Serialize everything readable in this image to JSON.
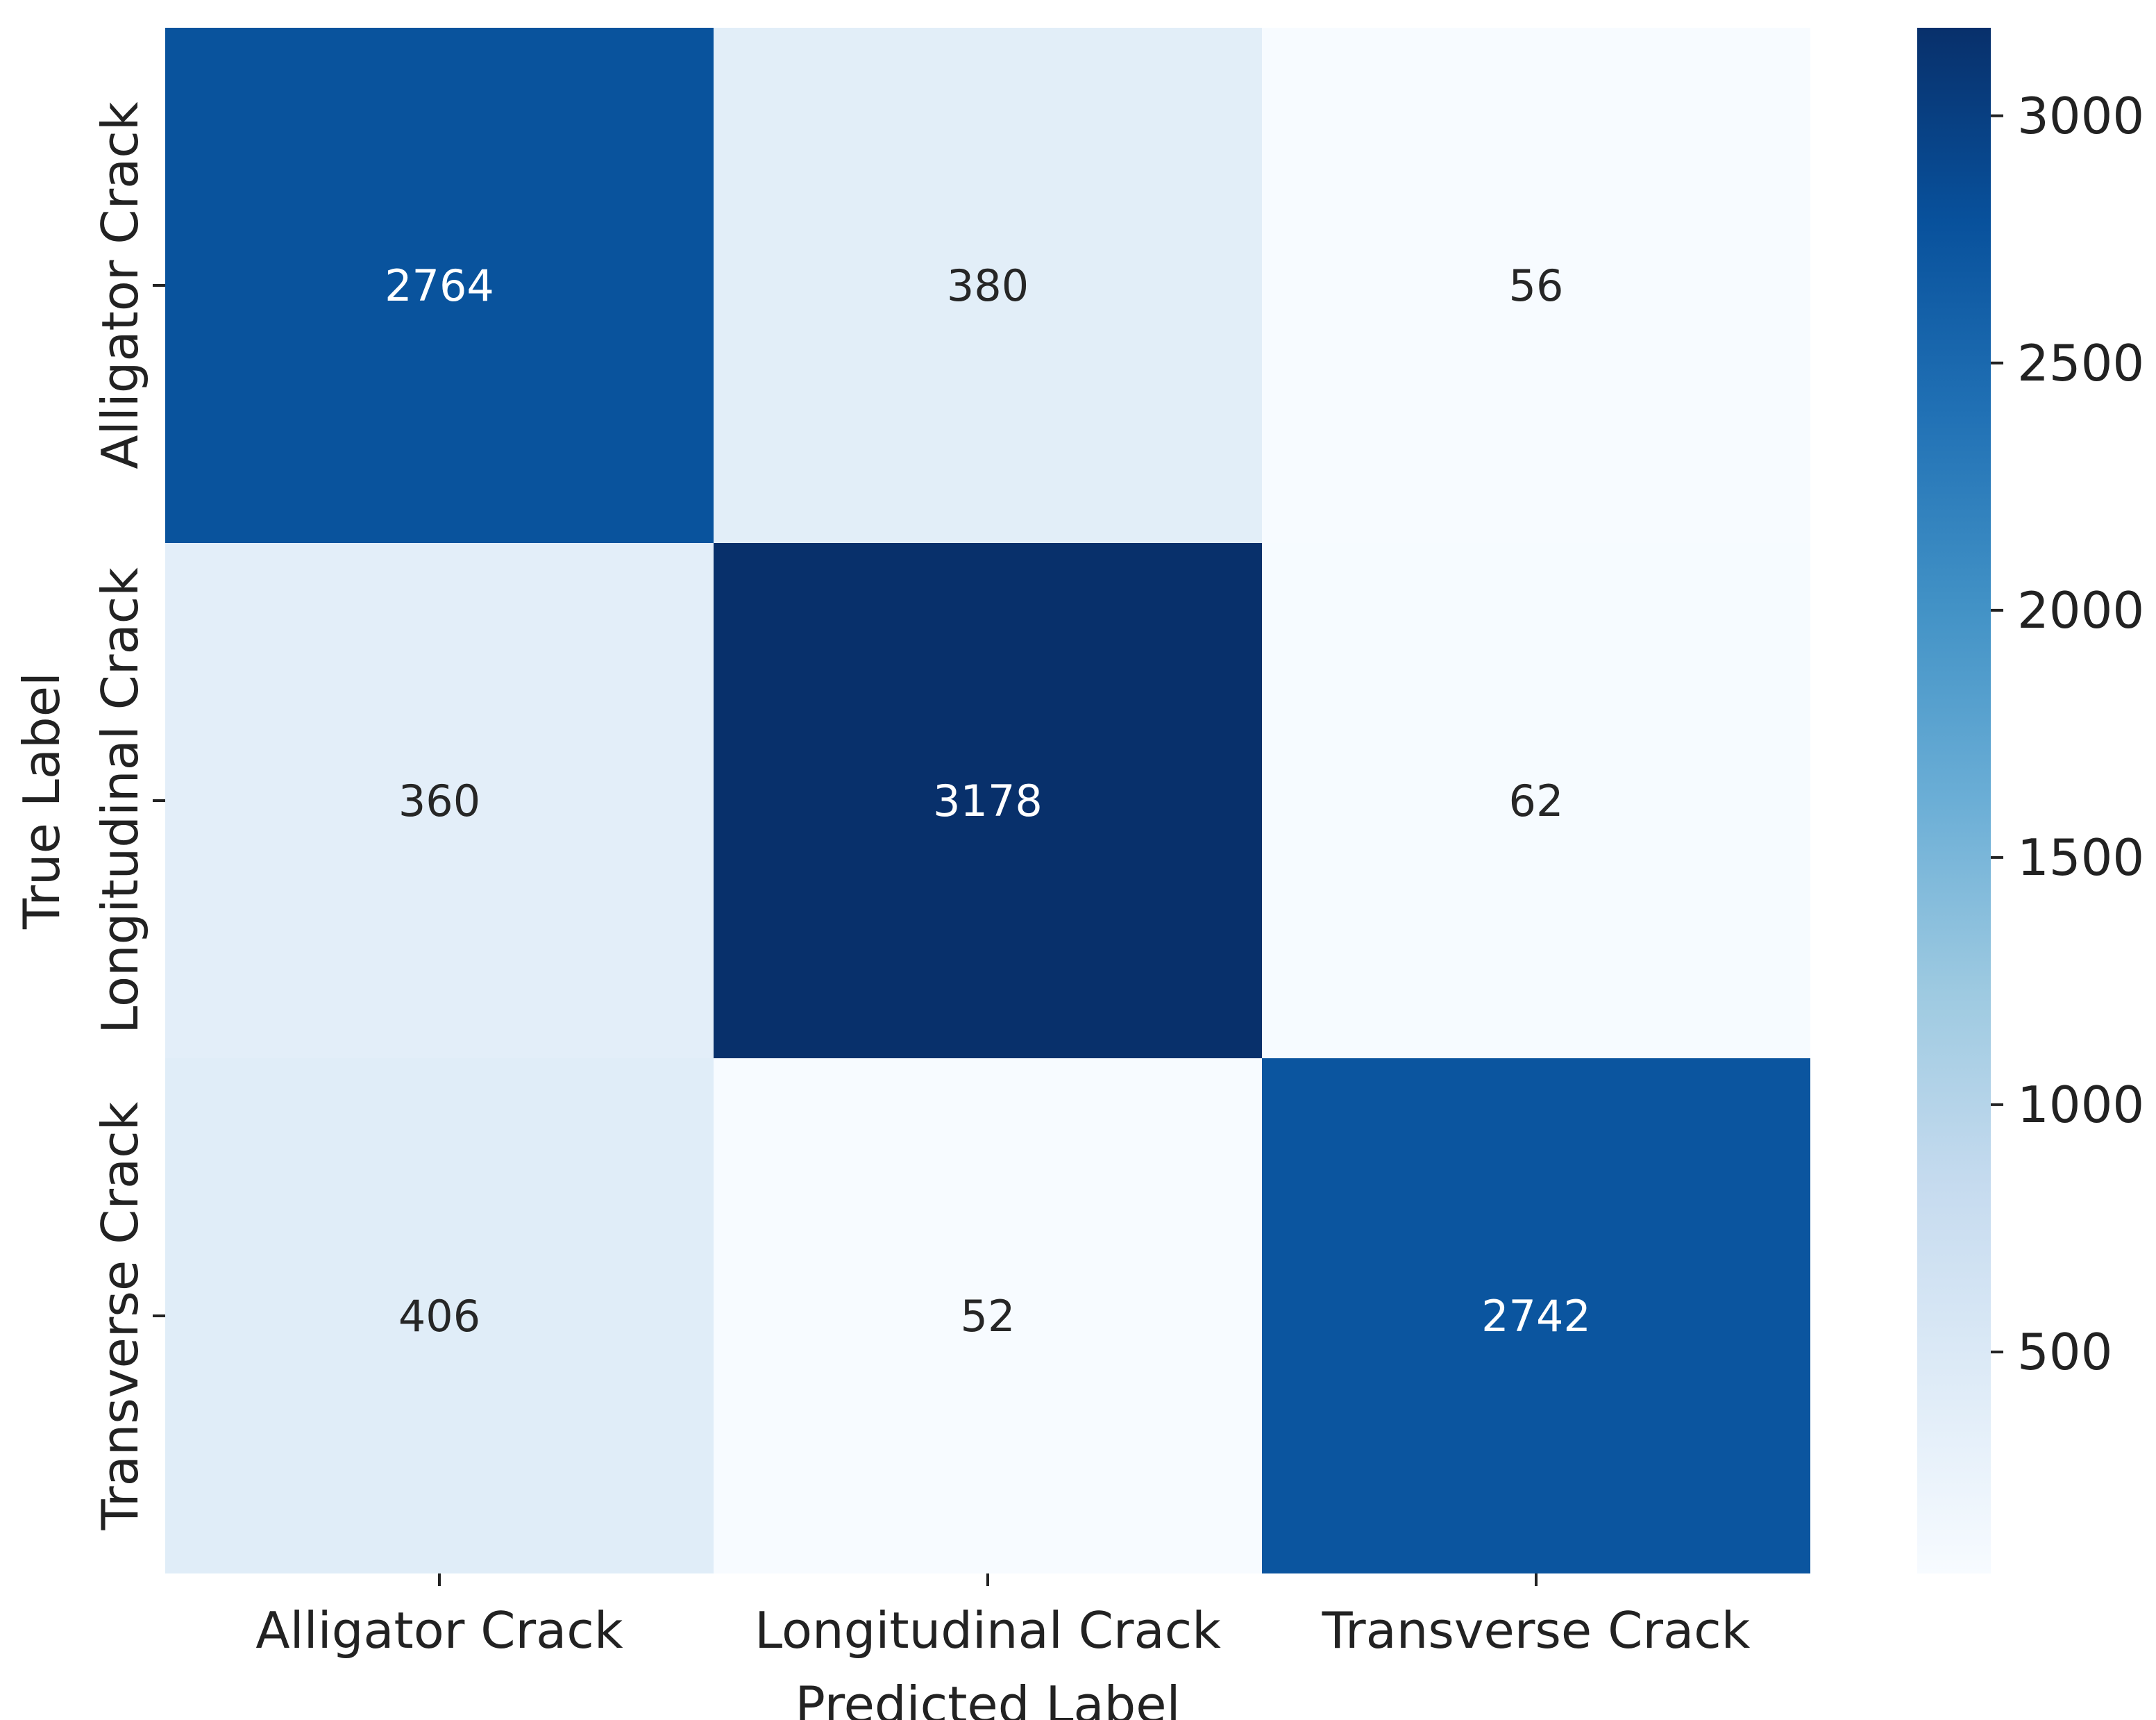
{
  "chart_data": {
    "type": "heatmap",
    "title": "",
    "xlabel": "Predicted Label",
    "ylabel": "True Label",
    "x_categories": [
      "Alligator Crack",
      "Longitudinal Crack",
      "Transverse Crack"
    ],
    "y_categories": [
      "Alligator Crack",
      "Longitudinal Crack",
      "Transverse Crack"
    ],
    "matrix": [
      [
        2764,
        380,
        56
      ],
      [
        360,
        3178,
        62
      ],
      [
        406,
        52,
        2742
      ]
    ],
    "colorbar": {
      "ticks": [
        500,
        1000,
        1500,
        2000,
        2500,
        3000
      ],
      "range": [
        52,
        3178
      ],
      "colormap": "Blues"
    },
    "colors": {
      "low": "#f7fbff",
      "high": "#08306b",
      "text_dark": "#262626",
      "text_light": "#ffffff"
    }
  }
}
